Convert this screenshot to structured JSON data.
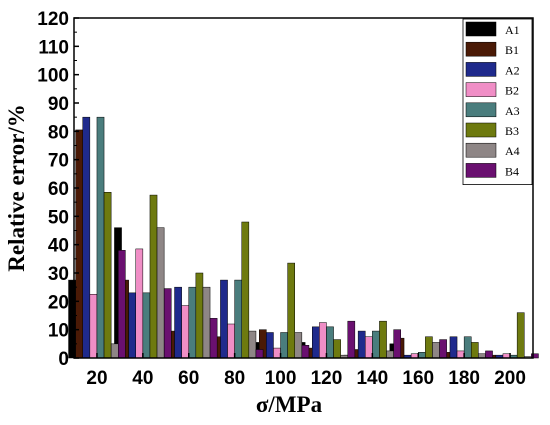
{
  "chart_data": {
    "type": "bar",
    "xlabel": "σ/MPa",
    "ylabel": "Relative error/%",
    "ylim": [
      0,
      120
    ],
    "yticks": [
      0,
      10,
      20,
      30,
      40,
      50,
      60,
      70,
      80,
      90,
      100,
      110,
      120
    ],
    "categories": [
      "20",
      "40",
      "60",
      "80",
      "100",
      "120",
      "140",
      "160",
      "180",
      "200"
    ],
    "legend_position": "top-right",
    "grid": false,
    "series": [
      {
        "name": "A1",
        "color": "#000000",
        "values": [
          27.5,
          46.0,
          5.0,
          0.5,
          5.5,
          5.5,
          1.0,
          5.0,
          0.5,
          0.5
        ]
      },
      {
        "name": "B1",
        "color": "#4a1a06",
        "values": [
          80.5,
          27.5,
          9.5,
          7.5,
          10.0,
          3.5,
          3.0,
          7.0,
          2.0,
          1.0
        ]
      },
      {
        "name": "A2",
        "color": "#1f2a8c",
        "values": [
          85.0,
          23.0,
          25.0,
          27.5,
          9.0,
          11.0,
          9.5,
          1.0,
          7.5,
          1.0
        ]
      },
      {
        "name": "B2",
        "color": "#f08ec6",
        "values": [
          22.5,
          38.5,
          18.5,
          12.0,
          3.5,
          12.5,
          7.5,
          1.5,
          2.5,
          1.5
        ]
      },
      {
        "name": "A3",
        "color": "#4a7d7d",
        "values": [
          85.0,
          23.0,
          25.0,
          27.5,
          9.0,
          11.0,
          9.5,
          2.0,
          7.5,
          1.0
        ]
      },
      {
        "name": "B3",
        "color": "#6e7a0f",
        "values": [
          58.5,
          57.5,
          30.0,
          48.0,
          33.5,
          6.5,
          13.0,
          7.5,
          5.5,
          16.0
        ]
      },
      {
        "name": "A4",
        "color": "#8e8686",
        "values": [
          5.0,
          46.0,
          25.0,
          9.5,
          9.0,
          1.0,
          2.5,
          5.5,
          1.5,
          0.5
        ]
      },
      {
        "name": "B4",
        "color": "#6a1070",
        "values": [
          38.0,
          24.5,
          14.0,
          3.0,
          4.5,
          13.0,
          10.0,
          6.5,
          2.5,
          1.5
        ]
      }
    ]
  }
}
